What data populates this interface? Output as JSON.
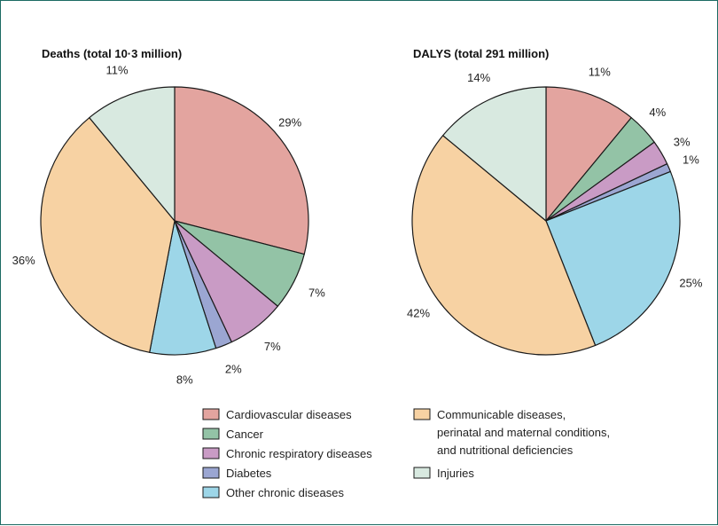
{
  "chart_data": [
    {
      "type": "pie",
      "title": "Deaths (total 10·3 million)",
      "slices": [
        {
          "name": "Cardiovascular diseases",
          "value": 29,
          "label": "29%",
          "color": "#e3a49f"
        },
        {
          "name": "Cancer",
          "value": 7,
          "label": "7%",
          "color": "#93c3a6"
        },
        {
          "name": "Chronic respiratory diseases",
          "value": 7,
          "label": "7%",
          "color": "#c99bc5"
        },
        {
          "name": "Diabetes",
          "value": 2,
          "label": "2%",
          "color": "#9ba6d2"
        },
        {
          "name": "Other chronic diseases",
          "value": 8,
          "label": "8%",
          "color": "#9dd6e8"
        },
        {
          "name": "Communicable diseases, perinatal and maternal conditions, and nutritional deficiencies",
          "value": 36,
          "label": "36%",
          "color": "#f7d2a3"
        },
        {
          "name": "Injuries",
          "value": 11,
          "label": "11%",
          "color": "#d8e9e0"
        }
      ]
    },
    {
      "type": "pie",
      "title": "DALYS (total 291 million)",
      "slices": [
        {
          "name": "Cardiovascular diseases",
          "value": 11,
          "label": "11%",
          "color": "#e3a49f"
        },
        {
          "name": "Cancer",
          "value": 4,
          "label": "4%",
          "color": "#93c3a6"
        },
        {
          "name": "Chronic respiratory diseases",
          "value": 3,
          "label": "3%",
          "color": "#c99bc5"
        },
        {
          "name": "Diabetes",
          "value": 1,
          "label": "1%",
          "color": "#9ba6d2"
        },
        {
          "name": "Other chronic diseases",
          "value": 25,
          "label": "25%",
          "color": "#9dd6e8"
        },
        {
          "name": "Communicable diseases, perinatal and maternal conditions, and nutritional deficiencies",
          "value": 42,
          "label": "42%",
          "color": "#f7d2a3"
        },
        {
          "name": "Injuries",
          "value": 14,
          "label": "14%",
          "color": "#d8e9e0"
        }
      ]
    }
  ],
  "legend": {
    "items": [
      {
        "lines": [
          "Cardiovascular diseases"
        ],
        "color": "#e3a49f"
      },
      {
        "lines": [
          "Cancer"
        ],
        "color": "#93c3a6"
      },
      {
        "lines": [
          "Chronic respiratory diseases"
        ],
        "color": "#c99bc5"
      },
      {
        "lines": [
          "Diabetes"
        ],
        "color": "#9ba6d2"
      },
      {
        "lines": [
          "Other chronic diseases"
        ],
        "color": "#9dd6e8"
      },
      {
        "lines": [
          "Communicable diseases,",
          "perinatal and maternal conditions,",
          "and nutritional deficiencies"
        ],
        "color": "#f7d2a3"
      },
      {
        "lines": [
          "Injuries"
        ],
        "color": "#d8e9e0"
      }
    ]
  },
  "colors": {
    "frame": "#1c6b63",
    "slice_stroke": "#1a1a1a"
  }
}
